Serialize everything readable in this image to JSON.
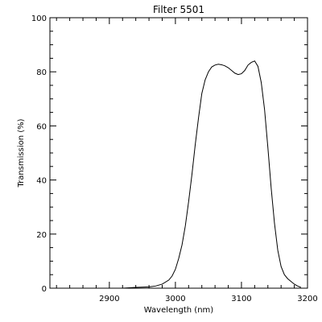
{
  "chart_data": {
    "type": "line",
    "title": "Filter 5501",
    "xlabel": "Wavelength (nm)",
    "ylabel": "Transmission (%)",
    "xlim": [
      2810,
      3200
    ],
    "ylim": [
      0,
      100
    ],
    "x_ticks": [
      2900,
      3000,
      3100,
      3200
    ],
    "y_ticks": [
      0,
      20,
      40,
      60,
      80,
      100
    ],
    "x_minor_step": 20,
    "y_minor_step": 5,
    "grid": false,
    "series": [
      {
        "x": [
          2810,
          2850,
          2880,
          2900,
          2920,
          2940,
          2960,
          2970,
          2980,
          2990,
          2995,
          3000,
          3005,
          3010,
          3015,
          3020,
          3025,
          3030,
          3035,
          3040,
          3045,
          3050,
          3055,
          3060,
          3065,
          3070,
          3075,
          3080,
          3085,
          3090,
          3095,
          3100,
          3105,
          3110,
          3115,
          3120,
          3125,
          3130,
          3135,
          3140,
          3145,
          3150,
          3155,
          3160,
          3165,
          3170,
          3175,
          3180,
          3185,
          3190
        ],
        "y": [
          0,
          0,
          0,
          0,
          0,
          0.3,
          0.5,
          0.8,
          1.5,
          3,
          4.5,
          7,
          11,
          16,
          23,
          32,
          42,
          53,
          63,
          72,
          77,
          80,
          81.8,
          82.5,
          82.8,
          82.6,
          82.2,
          81.5,
          80.5,
          79.5,
          79,
          79.3,
          80.5,
          82.5,
          83.5,
          84,
          82,
          76,
          66,
          52,
          37,
          24,
          14,
          8,
          5,
          3.5,
          2.5,
          1.5,
          0.8,
          0.3
        ]
      }
    ]
  }
}
